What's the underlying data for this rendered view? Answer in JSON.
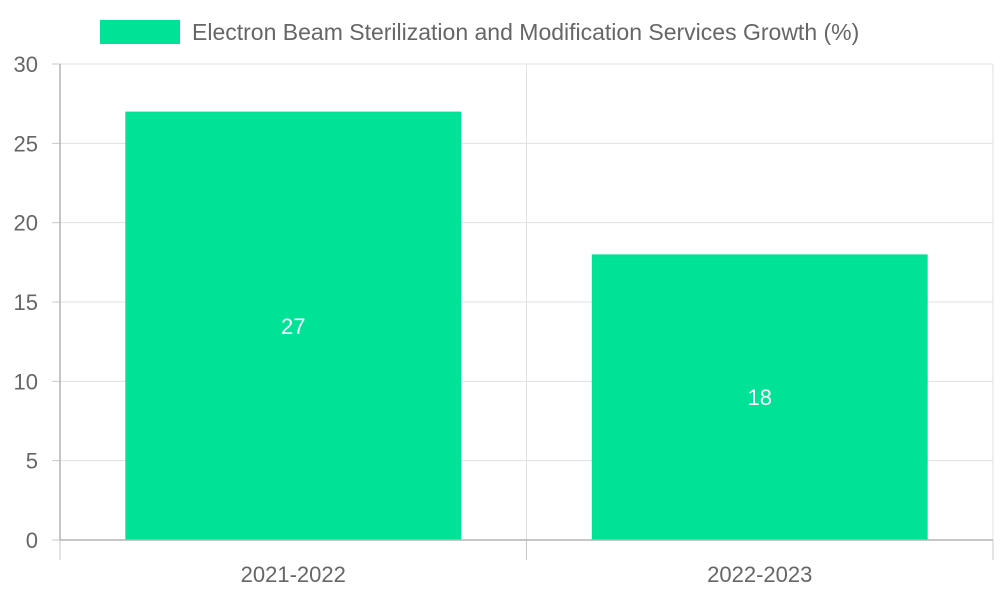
{
  "chart_data": {
    "type": "bar",
    "categories": [
      "2021-2022",
      "2022-2023"
    ],
    "series": [
      {
        "name": "Electron Beam Sterilization and Modification Services Growth (%)",
        "values": [
          27,
          18
        ],
        "color": "#00e396"
      }
    ],
    "title": "",
    "xlabel": "",
    "ylabel": "",
    "ylim": [
      0,
      30
    ],
    "yticks": [
      0,
      5,
      10,
      15,
      20,
      25,
      30
    ],
    "legend_position": "top",
    "grid": true,
    "data_labels": true
  }
}
